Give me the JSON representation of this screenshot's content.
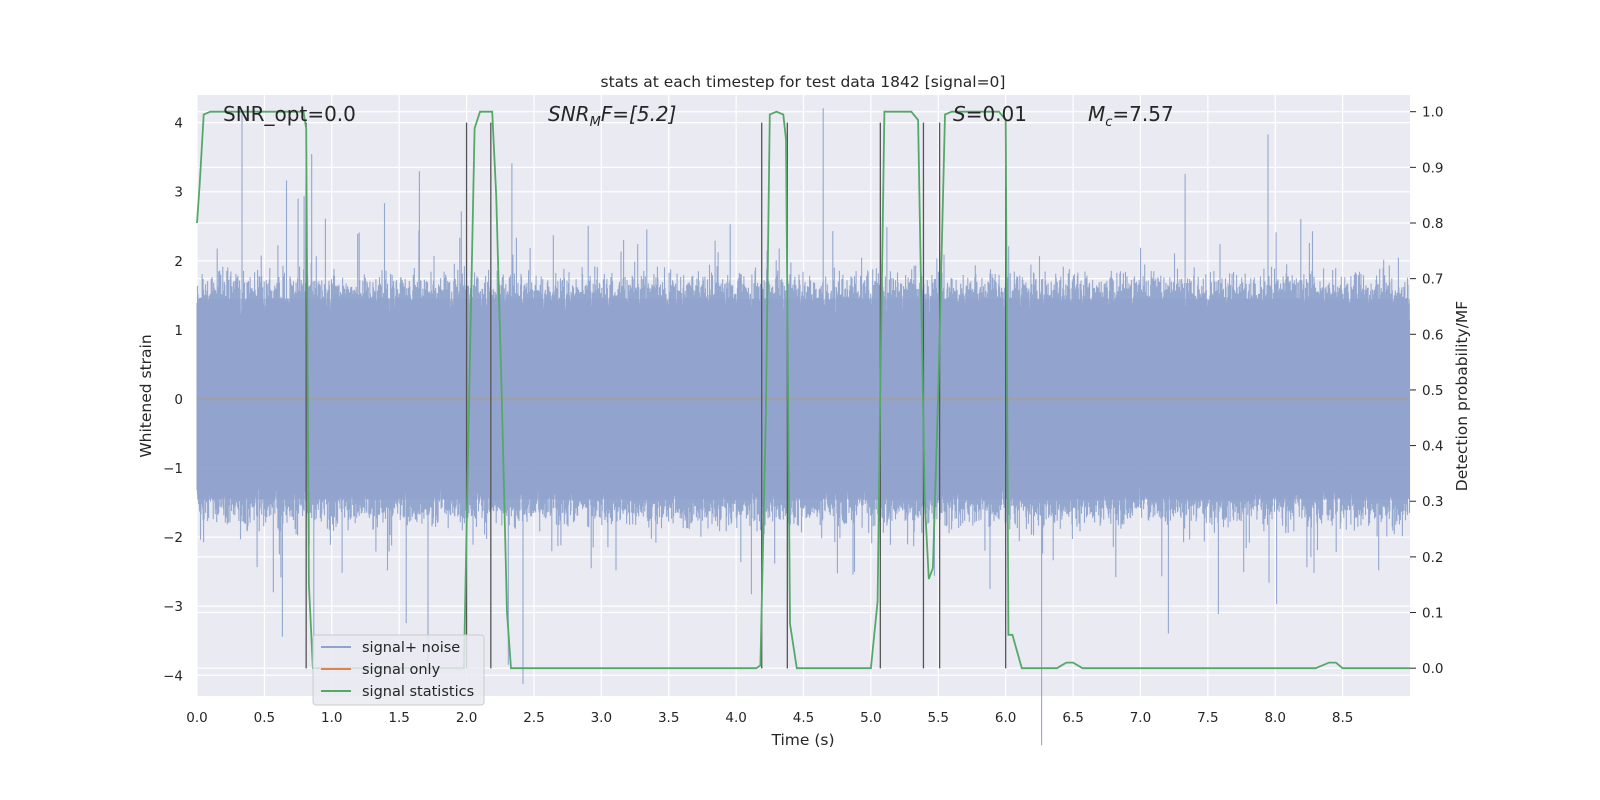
{
  "chart_data": {
    "type": "line",
    "title": "stats at each timestep for test data 1842 [signal=0]",
    "xlabel": "Time (s)",
    "ylabel": "Whitened strain",
    "ylabel_right": "Detection probability/MF",
    "xlim": [
      0.0,
      9.0
    ],
    "ylim": [
      -4.3,
      4.4
    ],
    "ylim_right": [
      -0.05,
      1.03
    ],
    "xticks": [
      "0.0",
      "0.5",
      "1.0",
      "1.5",
      "2.0",
      "2.5",
      "3.0",
      "3.5",
      "4.0",
      "4.5",
      "5.0",
      "5.5",
      "6.0",
      "6.5",
      "7.0",
      "7.5",
      "8.0",
      "8.5"
    ],
    "yticks": [
      "4",
      "3",
      "2",
      "1",
      "0",
      "−1",
      "−2",
      "−3",
      "−4"
    ],
    "yticks_right": [
      "1.0",
      "0.9",
      "0.8",
      "0.7",
      "0.6",
      "0.5",
      "0.4",
      "0.3",
      "0.2",
      "0.1",
      "0.0"
    ],
    "grid": true,
    "legend_placement": "lower-left",
    "annotations": {
      "snr_opt": "SNR_opt=0.0",
      "snr_mf_base": "SNR",
      "snr_mf_sub": "M",
      "snr_mf_rest": "F=[5.2]",
      "s_prefix": "S",
      "s_value": "=0.01",
      "mc_base": "M",
      "mc_sub": "c",
      "mc_value": "=7.57"
    },
    "series": [
      {
        "name": "signal+ noise",
        "color": "#8fa3cc",
        "style": "noise trace, approx. ±1.6 body with spikes to ±3.8"
      },
      {
        "name": "signal only",
        "color": "#dd8452",
        "values": "flat at 0"
      },
      {
        "name": "signal statistics",
        "color": "#55a868",
        "axis": "right",
        "x": [
          0.0,
          0.02,
          0.05,
          0.1,
          0.2,
          0.4,
          0.6,
          0.7,
          0.79,
          0.81,
          0.83,
          0.86,
          0.9,
          1.0,
          1.5,
          1.9,
          1.98,
          2.02,
          2.06,
          2.1,
          2.15,
          2.19,
          2.22,
          2.26,
          2.3,
          2.33,
          2.4,
          2.6,
          3.0,
          3.5,
          4.0,
          4.15,
          4.18,
          4.22,
          4.25,
          4.3,
          4.35,
          4.37,
          4.4,
          4.45,
          4.5,
          4.6,
          4.8,
          5.0,
          5.05,
          5.07,
          5.1,
          5.15,
          5.2,
          5.3,
          5.35,
          5.4,
          5.43,
          5.46,
          5.5,
          5.55,
          5.6,
          5.8,
          5.95,
          6.0,
          6.02,
          6.05,
          6.12,
          6.3,
          6.38,
          6.45,
          6.5,
          6.57,
          6.62,
          7.0,
          7.5,
          8.0,
          8.3,
          8.4,
          8.45,
          8.5,
          8.6,
          9.0
        ],
        "values": [
          0.8,
          0.87,
          0.995,
          1.0,
          1.0,
          1.0,
          1.0,
          1.0,
          1.0,
          0.97,
          0.15,
          0.0,
          0.0,
          0.0,
          0.0,
          0.0,
          0.0,
          0.5,
          0.97,
          1.0,
          1.0,
          1.0,
          0.85,
          0.5,
          0.1,
          0.0,
          0.0,
          0.0,
          0.0,
          0.0,
          0.0,
          0.0,
          0.005,
          0.45,
          0.995,
          1.0,
          0.995,
          0.95,
          0.08,
          0.0,
          0.0,
          0.0,
          0.0,
          0.0,
          0.12,
          0.5,
          1.0,
          1.0,
          1.0,
          1.0,
          0.985,
          0.3,
          0.16,
          0.18,
          0.5,
          0.995,
          1.0,
          1.0,
          1.0,
          0.985,
          0.06,
          0.06,
          0.0,
          0.0,
          0.0,
          0.01,
          0.01,
          0.0,
          0.0,
          0.0,
          0.0,
          0.0,
          0.0,
          0.01,
          0.01,
          0.0,
          0.0,
          0.0
        ]
      }
    ],
    "vlines": [
      0.81,
      2.0,
      2.18,
      4.19,
      4.38,
      5.07,
      5.39,
      5.51,
      6.0
    ]
  }
}
